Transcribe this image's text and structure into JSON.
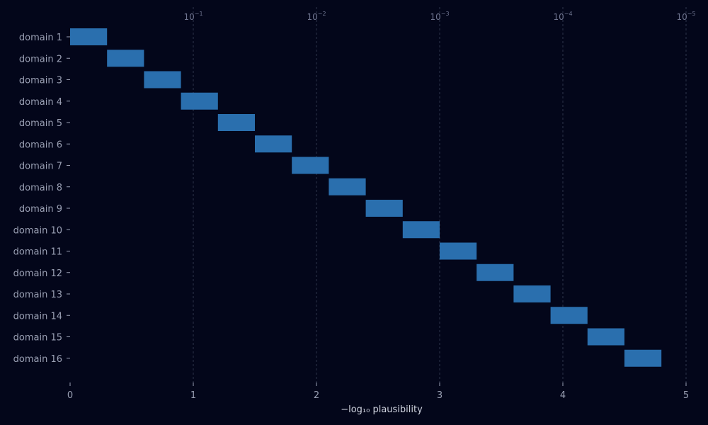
{
  "chart_data": {
    "type": "bar",
    "orientation": "horizontal-range",
    "xlabel": "−log₁₀ plausibility",
    "xlim": [
      0,
      5
    ],
    "x_ticks": [
      "0",
      "1",
      "2",
      "3",
      "4",
      "5"
    ],
    "top_axis_ticks": [
      {
        "at": 1,
        "base": "10",
        "exp": "−1"
      },
      {
        "at": 2,
        "base": "10",
        "exp": "−2"
      },
      {
        "at": 3,
        "base": "10",
        "exp": "−3"
      },
      {
        "at": 4,
        "base": "10",
        "exp": "−4"
      },
      {
        "at": 5,
        "base": "10",
        "exp": "−5"
      }
    ],
    "categories": [
      "domain 1",
      "domain 2",
      "domain 3",
      "domain 4",
      "domain 5",
      "domain 6",
      "domain 7",
      "domain 8",
      "domain 9",
      "domain 10",
      "domain 11",
      "domain 12",
      "domain 13",
      "domain 14",
      "domain 15",
      "domain 16"
    ],
    "ranges": [
      [
        0.0,
        0.3
      ],
      [
        0.3,
        0.6
      ],
      [
        0.6,
        0.9
      ],
      [
        0.9,
        1.2
      ],
      [
        1.2,
        1.5
      ],
      [
        1.5,
        1.8
      ],
      [
        1.8,
        2.1
      ],
      [
        2.1,
        2.4
      ],
      [
        2.4,
        2.7
      ],
      [
        2.7,
        3.0
      ],
      [
        3.0,
        3.3
      ],
      [
        3.3,
        3.6
      ],
      [
        3.6,
        3.9
      ],
      [
        3.9,
        4.2
      ],
      [
        4.2,
        4.5
      ],
      [
        4.5,
        4.8
      ]
    ],
    "grid": "vertical dashed",
    "bar_color": "#2a6fae",
    "background_color": "#03061a",
    "grid_color": "#3a4057"
  }
}
